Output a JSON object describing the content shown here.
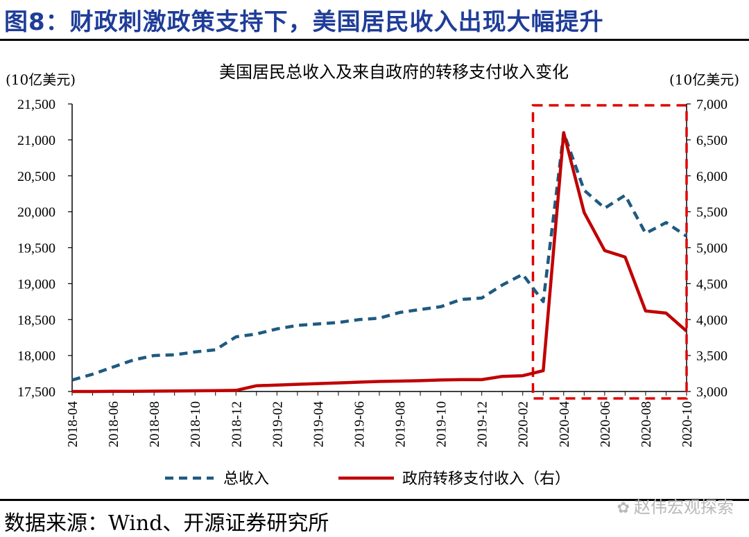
{
  "figure": {
    "title": "图8：财政刺激政策支持下，美国居民收入出现大幅提升",
    "source": "数据来源：Wind、开源证券研究所",
    "watermark": "赵伟宏观探索"
  },
  "colors": {
    "title": "#1f3d99",
    "total_income": "#1f5a80",
    "transfer": "#c00000",
    "highlight": "#e00000"
  },
  "chart_data": {
    "type": "line",
    "title": "美国居民总收入及来自政府的转移支付收入变化",
    "ylabel_left": "(10亿美元)",
    "ylabel_right": "(10亿美元)",
    "ylim_left": [
      17500,
      21500
    ],
    "ylim_right": [
      3000,
      7000
    ],
    "yticks_left": [
      "17,500",
      "18,000",
      "18,500",
      "19,000",
      "19,500",
      "20,000",
      "20,500",
      "21,000",
      "21,500"
    ],
    "yticks_right": [
      "3,000",
      "3,500",
      "4,000",
      "4,500",
      "5,000",
      "5,500",
      "6,000",
      "6,500",
      "7,000"
    ],
    "x": [
      "2018-04",
      "2018-05",
      "2018-06",
      "2018-07",
      "2018-08",
      "2018-09",
      "2018-10",
      "2018-11",
      "2018-12",
      "2019-01",
      "2019-02",
      "2019-03",
      "2019-04",
      "2019-05",
      "2019-06",
      "2019-07",
      "2019-08",
      "2019-09",
      "2019-10",
      "2019-11",
      "2019-12",
      "2020-01",
      "2020-02",
      "2020-03",
      "2020-04",
      "2020-05",
      "2020-06",
      "2020-07",
      "2020-08",
      "2020-09",
      "2020-10"
    ],
    "xticks": [
      "2018-04",
      "2018-06",
      "2018-08",
      "2018-10",
      "2018-12",
      "2019-02",
      "2019-04",
      "2019-06",
      "2019-08",
      "2019-10",
      "2019-12",
      "2020-02",
      "2020-04",
      "2020-06",
      "2020-08",
      "2020-10"
    ],
    "series": [
      {
        "name": "总收入",
        "axis": "left",
        "style": "dashed",
        "values": [
          17660,
          17740,
          17840,
          17940,
          18000,
          18010,
          18050,
          18080,
          18260,
          18300,
          18370,
          18420,
          18440,
          18460,
          18500,
          18520,
          18600,
          18640,
          18680,
          18780,
          18800,
          18980,
          19130,
          18750,
          21100,
          20300,
          20050,
          20230,
          19700,
          19850,
          19660
        ]
      },
      {
        "name": "政府转移支付收入（右）",
        "axis": "right",
        "style": "solid",
        "values": [
          3000,
          3000,
          3002,
          3003,
          3005,
          3007,
          3010,
          3012,
          3015,
          3080,
          3090,
          3100,
          3110,
          3120,
          3130,
          3140,
          3145,
          3150,
          3160,
          3165,
          3165,
          3210,
          3220,
          3290,
          6600,
          5490,
          4960,
          4870,
          4120,
          4090,
          3840
        ]
      }
    ],
    "highlight": {
      "label": "highlighted period",
      "from": "2020-03",
      "to": "2020-10"
    },
    "legend": [
      "总收入",
      "政府转移支付收入（右）"
    ],
    "legend_position": "bottom"
  }
}
